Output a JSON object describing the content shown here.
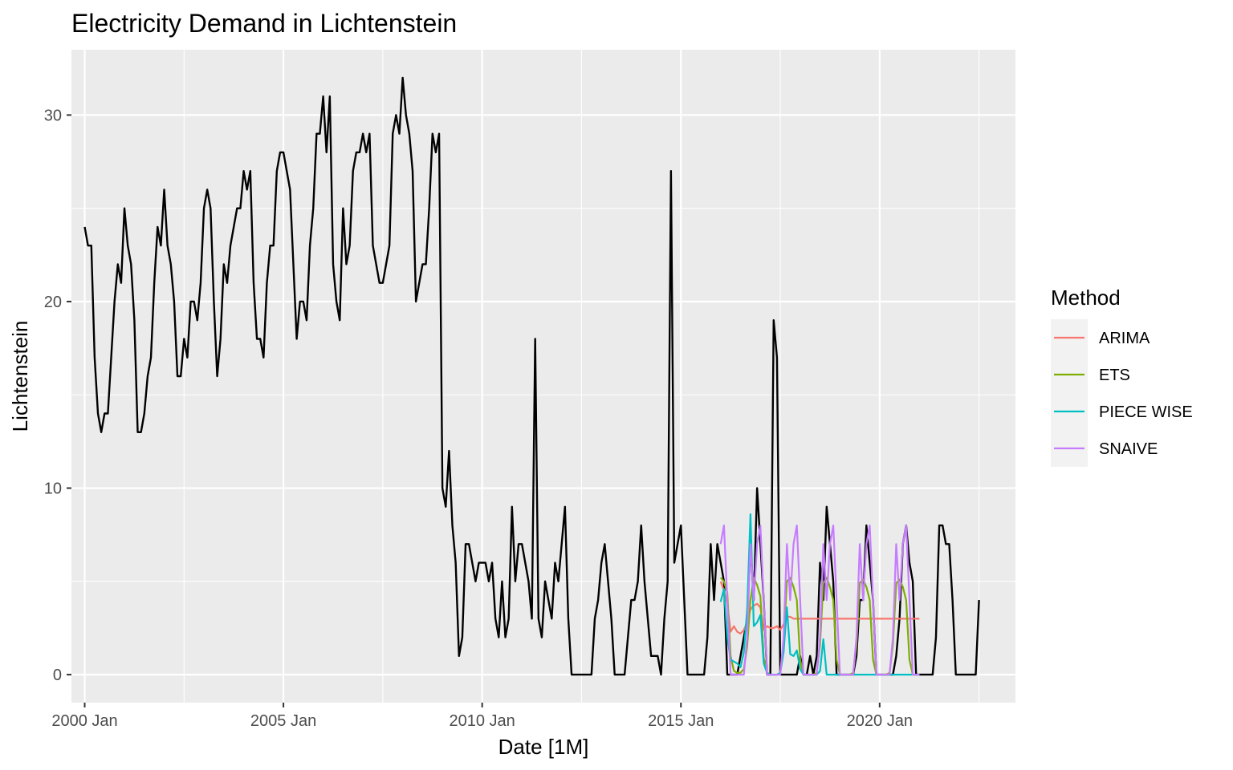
{
  "chart_data": {
    "type": "line",
    "title": "Electricity Demand in Lichtenstein",
    "xlabel": "Date [1M]",
    "ylabel": "Lichtenstein",
    "x_ticks": [
      "2000 Jan",
      "2005 Jan",
      "2010 Jan",
      "2015 Jan",
      "2020 Jan"
    ],
    "y_ticks": [
      "0",
      "10",
      "20",
      "30"
    ],
    "xlim": [
      "1999-09",
      "2023-06"
    ],
    "ylim": [
      -1.5,
      33.5
    ],
    "grid": true,
    "legend": {
      "title": "Method",
      "position": "right",
      "entries": [
        "ARIMA",
        "ETS",
        "PIECE WISE",
        "SNAIVE"
      ]
    },
    "observed": {
      "color": "#000000",
      "start": "2000-01",
      "frequency": "monthly",
      "values": [
        24,
        23,
        23,
        17,
        14,
        13,
        14,
        14,
        17,
        20,
        22,
        21,
        25,
        23,
        22,
        19,
        13,
        13,
        14,
        16,
        17,
        21,
        24,
        23,
        26,
        23,
        22,
        20,
        16,
        16,
        18,
        17,
        20,
        20,
        19,
        21,
        25,
        26,
        25,
        20,
        16,
        18,
        22,
        21,
        23,
        24,
        25,
        25,
        27,
        26,
        27,
        21,
        18,
        18,
        17,
        21,
        23,
        23,
        27,
        28,
        28,
        27,
        26,
        22,
        18,
        20,
        20,
        19,
        23,
        25,
        29,
        29,
        31,
        28,
        31,
        22,
        20,
        19,
        25,
        22,
        23,
        27,
        28,
        28,
        29,
        28,
        29,
        23,
        22,
        21,
        21,
        22,
        23,
        29,
        30,
        29,
        32,
        30,
        29,
        27,
        20,
        21,
        22,
        22,
        25,
        29,
        28,
        29,
        10,
        9,
        12,
        8,
        6,
        1,
        2,
        7,
        7,
        6,
        5,
        6,
        6,
        6,
        5,
        6,
        3,
        2,
        5,
        2,
        3,
        9,
        5,
        7,
        7,
        6,
        5,
        3,
        18,
        3,
        2,
        5,
        4,
        3,
        6,
        5,
        7,
        9,
        3,
        0,
        0,
        0,
        0,
        0,
        0,
        0,
        3,
        4,
        6,
        7,
        5,
        3,
        0,
        0,
        0,
        0,
        2,
        4,
        4,
        5,
        8,
        5,
        3,
        1,
        1,
        1,
        0,
        3,
        5,
        27,
        6,
        7,
        8,
        4,
        0,
        0,
        0,
        0,
        0,
        0,
        2,
        7,
        4,
        7,
        6,
        5,
        0,
        0,
        0,
        0,
        1,
        2,
        3,
        7,
        4,
        10,
        7,
        4,
        0,
        0,
        19,
        17,
        0,
        0,
        0,
        0,
        0,
        0,
        1,
        0,
        0,
        1,
        0,
        1,
        6,
        4,
        9,
        7,
        5,
        0,
        0,
        0,
        0,
        0,
        0,
        1,
        4,
        4,
        8,
        6,
        4,
        0,
        0,
        0,
        0,
        0,
        0,
        1,
        3,
        7,
        8,
        6,
        5,
        0,
        0,
        0,
        0,
        0,
        0,
        2,
        8,
        8,
        7,
        7,
        4,
        0,
        0,
        0,
        0,
        0,
        0,
        0,
        4
      ]
    },
    "series": [
      {
        "name": "ARIMA",
        "color": "#F8766D",
        "start": "2016-01",
        "values": [
          5.0,
          4.5,
          3.8,
          2.3,
          2.6,
          2.3,
          2.2,
          2.4,
          2.8,
          3.5,
          3.7,
          3.8,
          3.6,
          2.4,
          2.6,
          2.5,
          2.5,
          2.6,
          2.4,
          2.7,
          3.1,
          3.1,
          3.0,
          3.0,
          3.0,
          3.0,
          3.0,
          3.0,
          3.0,
          3.0,
          3.0,
          3.0,
          3.0,
          3.0,
          3.0,
          3.0,
          3.0,
          3.0,
          3.0,
          3.0,
          3.0,
          3.0,
          3.0,
          3.0,
          3.0,
          3.0,
          3.0,
          3.0,
          3.0,
          3.0,
          3.0,
          3.0,
          3.0,
          3.0,
          3.0,
          3.0,
          3.0,
          3.0,
          3.0,
          3.0,
          3.0
        ]
      },
      {
        "name": "ETS",
        "color": "#7CAE00",
        "start": "2016-01",
        "values": [
          5.2,
          5.0,
          4.4,
          1.0,
          0.2,
          0.1,
          0.1,
          0.3,
          1.5,
          4.0,
          5.2,
          4.8,
          4.2,
          0.9,
          0.1,
          0.0,
          0.0,
          0.0,
          0.1,
          1.8,
          5.0,
          5.2,
          4.7,
          4.0,
          0.8,
          0.0,
          0.0,
          0.0,
          0.0,
          0.1,
          1.6,
          4.9,
          5.2,
          4.7,
          4.0,
          0.8,
          0.0,
          0.0,
          0.0,
          0.0,
          0.1,
          1.6,
          4.9,
          5.1,
          4.7,
          4.0,
          0.8,
          0.0,
          0.0,
          0.0,
          0.0,
          0.1,
          1.6,
          4.9,
          5.1,
          4.7,
          4.0,
          0.8,
          0.0,
          0.0,
          0.0
        ]
      },
      {
        "name": "PIECE WISE",
        "color": "#00BFC4",
        "start": "2016-01",
        "values": [
          3.9,
          4.6,
          2.0,
          0.8,
          0.7,
          0.6,
          0.4,
          1.2,
          3.5,
          8.6,
          2.6,
          2.8,
          3.2,
          0.6,
          0.1,
          0.0,
          0.0,
          0.0,
          0.1,
          1.2,
          3.6,
          1.1,
          1.0,
          1.3,
          0.3,
          0.0,
          0.0,
          0.0,
          0.0,
          0.0,
          0.2,
          1.9,
          0.0,
          0.0,
          0.0,
          0.0,
          0.0,
          0.0,
          0.0,
          0.0,
          0.0,
          0.0,
          0.0,
          0.0,
          0.0,
          0.0,
          0.0,
          0.0,
          0.0,
          0.0,
          0.0,
          0.0,
          0.0,
          0.0,
          0.0,
          0.0,
          0.0,
          0.0,
          0.0,
          0.0,
          0.0
        ]
      },
      {
        "name": "SNAIVE",
        "color": "#C77CFF",
        "start": "2016-01",
        "values": [
          7,
          8,
          4,
          0,
          0,
          0,
          0,
          0,
          2,
          7,
          4,
          7,
          8,
          4,
          0,
          0,
          0,
          0,
          0,
          2,
          7,
          4,
          7,
          8,
          4,
          0,
          0,
          0,
          0,
          0,
          2,
          7,
          4,
          7,
          8,
          4,
          0,
          0,
          0,
          0,
          0,
          2,
          7,
          4,
          7,
          8,
          4,
          0,
          0,
          0,
          0,
          0,
          2,
          7,
          4,
          7,
          8,
          4,
          0,
          0,
          0
        ]
      }
    ]
  }
}
